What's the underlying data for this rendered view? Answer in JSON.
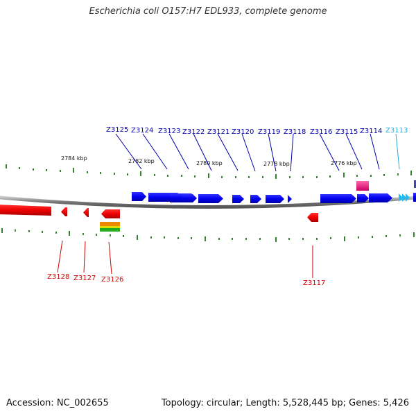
{
  "title": "Escherichia coli O157:H7 EDL933, complete genome",
  "accession": "Accession: NC_002655",
  "summary": "Topology: circular; Length: 5,528,445 bp; Genes: 5,426",
  "colors": {
    "forward_gene": "#0000ee",
    "reverse_gene": "#ee0000",
    "rna_gene": "#33ccee",
    "highlight": "#ee2288",
    "tick": "#006600",
    "backbone": "#888888"
  },
  "scale_labels": [
    {
      "text": "2784 kbp",
      "kbp": 2784
    },
    {
      "text": "2782 kbp",
      "kbp": 2782
    },
    {
      "text": "2780 kbp",
      "kbp": 2780
    },
    {
      "text": "2778 kbp",
      "kbp": 2778
    },
    {
      "text": "2776 kbp",
      "kbp": 2776
    }
  ],
  "forward_genes": [
    {
      "label": "Z3125",
      "color": "#0000aa"
    },
    {
      "label": "Z3124",
      "color": "#0000aa"
    },
    {
      "label": "Z3123",
      "color": "#0000aa"
    },
    {
      "label": "Z3122",
      "color": "#0000aa"
    },
    {
      "label": "Z3121",
      "color": "#0000aa"
    },
    {
      "label": "Z3120",
      "color": "#0000aa"
    },
    {
      "label": "Z3119",
      "color": "#0000aa"
    },
    {
      "label": "Z3118",
      "color": "#0000aa"
    },
    {
      "label": "Z3116",
      "color": "#0000aa"
    },
    {
      "label": "Z3115",
      "color": "#0000aa"
    },
    {
      "label": "Z3114",
      "color": "#0000aa"
    },
    {
      "label": "Z3113",
      "color": "#22aadd"
    }
  ],
  "reverse_genes": [
    {
      "label": "Z3128"
    },
    {
      "label": "Z3127"
    },
    {
      "label": "Z3126"
    },
    {
      "label": "Z3117"
    }
  ]
}
